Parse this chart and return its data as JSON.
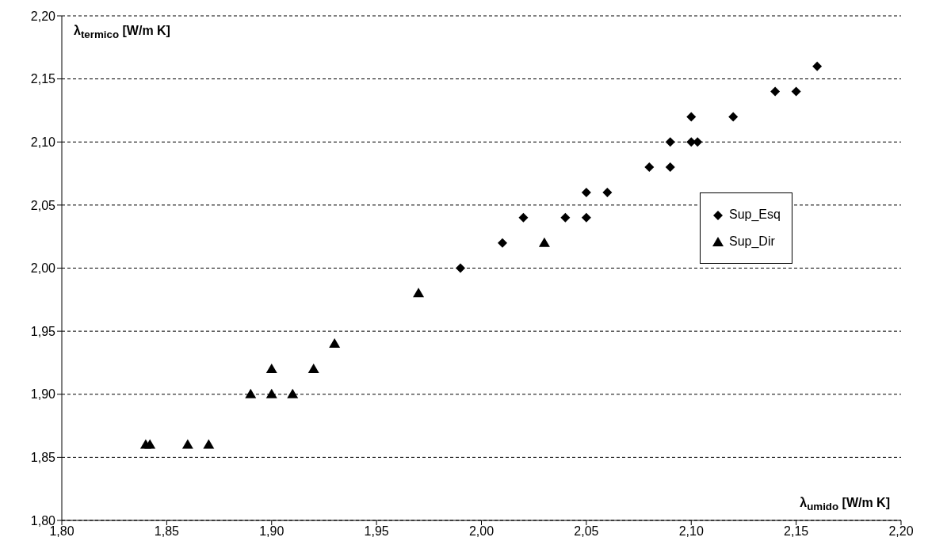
{
  "chart_data": {
    "type": "scatter",
    "xlabel": "λ$_{umido}$ [W/m K]",
    "ylabel": "λ$_{termico}$ [W/m K]",
    "xlim": [
      1.8,
      2.2
    ],
    "ylim": [
      1.8,
      2.2
    ],
    "xticks": [
      {
        "value": 1.8,
        "label": "1,80"
      },
      {
        "value": 1.85,
        "label": "1,85"
      },
      {
        "value": 1.9,
        "label": "1,90"
      },
      {
        "value": 1.95,
        "label": "1,95"
      },
      {
        "value": 2.0,
        "label": "2,00"
      },
      {
        "value": 2.05,
        "label": "2,05"
      },
      {
        "value": 2.1,
        "label": "2,10"
      },
      {
        "value": 2.15,
        "label": "2,15"
      },
      {
        "value": 2.2,
        "label": "2,20"
      }
    ],
    "yticks": [
      {
        "value": 1.8,
        "label": "1,80"
      },
      {
        "value": 1.85,
        "label": "1,85"
      },
      {
        "value": 1.9,
        "label": "1,90"
      },
      {
        "value": 1.95,
        "label": "1,95"
      },
      {
        "value": 2.0,
        "label": "2,00"
      },
      {
        "value": 2.05,
        "label": "2,05"
      },
      {
        "value": 2.1,
        "label": "2,10"
      },
      {
        "value": 2.15,
        "label": "2,15"
      },
      {
        "value": 2.2,
        "label": "2,20"
      }
    ],
    "grid": "y",
    "legend": "right",
    "series": [
      {
        "name": "Sup_Esq",
        "color": "#000000",
        "marker": "diamond",
        "x": [
          1.99,
          2.01,
          2.02,
          2.04,
          2.05,
          2.05,
          2.06,
          2.08,
          2.09,
          2.09,
          2.1,
          2.1,
          2.103,
          2.12,
          2.14,
          2.15,
          2.16
        ],
        "values": [
          2.0,
          2.02,
          2.04,
          2.04,
          2.06,
          2.04,
          2.06,
          2.08,
          2.1,
          2.08,
          2.12,
          2.1,
          2.1,
          2.12,
          2.14,
          2.14,
          2.16
        ]
      },
      {
        "name": "Sup_Dir",
        "color": "#000000",
        "marker": "triangle",
        "x": [
          1.84,
          1.842,
          1.86,
          1.87,
          1.89,
          1.9,
          1.9,
          1.91,
          1.92,
          1.93,
          1.97,
          2.03
        ],
        "values": [
          1.86,
          1.86,
          1.86,
          1.86,
          1.9,
          1.92,
          1.9,
          1.9,
          1.92,
          1.94,
          1.98,
          2.02
        ]
      }
    ]
  }
}
